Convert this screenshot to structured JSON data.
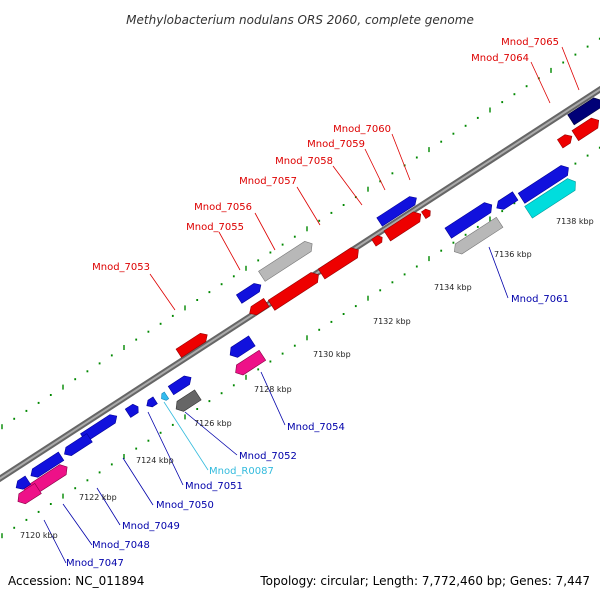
{
  "title": "Methylobacterium nodulans ORS 2060, complete genome",
  "footer": {
    "accession": "Accession: NC_011894",
    "summary": "Topology: circular; Length: 7,772,460 bp; Genes: 7,447"
  },
  "colors": {
    "upper_label": "#dd0000",
    "lower_label": "#0000aa",
    "rna_label": "#33bbdd",
    "backbone": "#888888",
    "tick": "#008800"
  },
  "ticks": [
    {
      "label": "7120 kbp",
      "kbp": 7120
    },
    {
      "label": "7122 kbp",
      "kbp": 7122
    },
    {
      "label": "7124 kbp",
      "kbp": 7124
    },
    {
      "label": "7126 kbp",
      "kbp": 7126
    },
    {
      "label": "7128 kbp",
      "kbp": 7128
    },
    {
      "label": "7130 kbp",
      "kbp": 7130
    },
    {
      "label": "7132 kbp",
      "kbp": 7132
    },
    {
      "label": "7134 kbp",
      "kbp": 7134
    },
    {
      "label": "7136 kbp",
      "kbp": 7136
    },
    {
      "label": "7138 kbp",
      "kbp": 7138
    }
  ],
  "upper_labels": [
    "Mnod_7053",
    "Mnod_7055",
    "Mnod_7056",
    "Mnod_7057",
    "Mnod_7058",
    "Mnod_7059",
    "Mnod_7060",
    "Mnod_7064",
    "Mnod_7065"
  ],
  "lower_labels": [
    "Mnod_7047",
    "Mnod_7048",
    "Mnod_7049",
    "Mnod_7050",
    "Mnod_7051",
    "Mnod_R0087",
    "Mnod_7052",
    "Mnod_7054",
    "Mnod_7061"
  ],
  "gene_colors": {
    "blue": "#1111dd",
    "red": "#ee0000",
    "navy": "#000077",
    "cyan": "#00dddd",
    "silver": "#b8b8b8",
    "pink": "#ee1188",
    "gray": "#666666",
    "lightblue": "#33bbee"
  }
}
